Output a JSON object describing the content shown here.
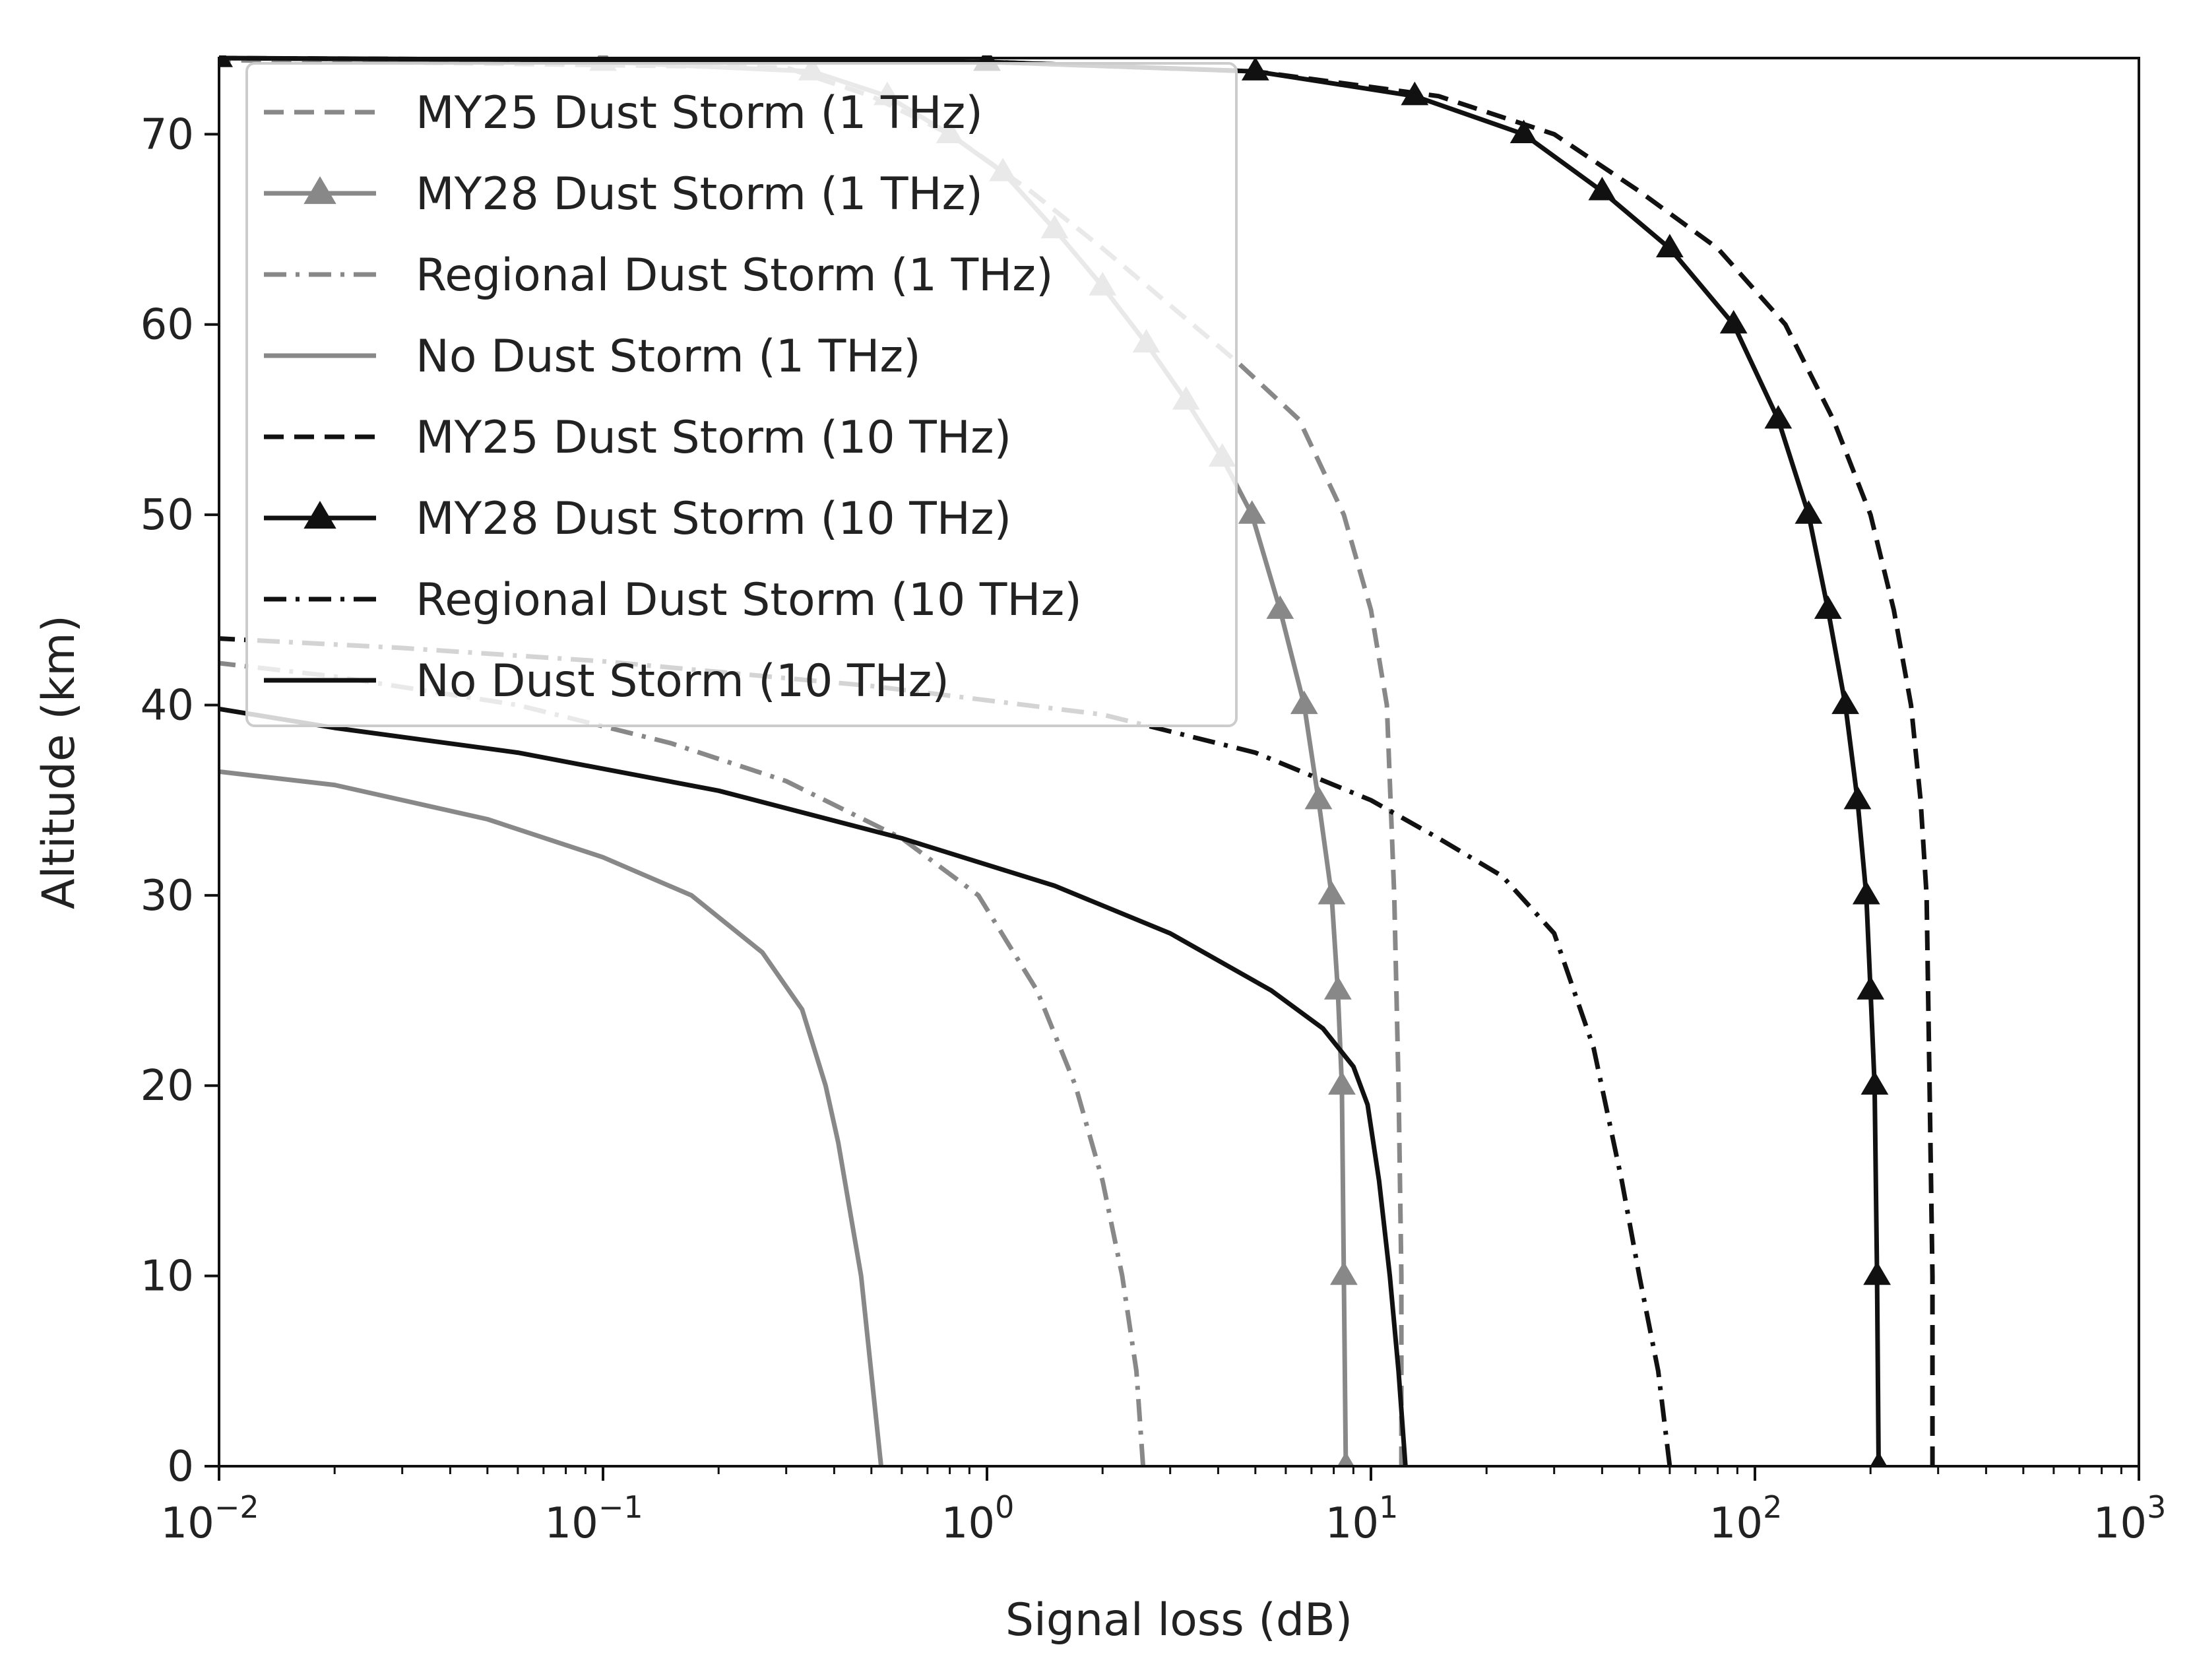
{
  "chart_data": {
    "type": "line",
    "title": "",
    "xlabel": "Signal loss (dB)",
    "ylabel": "Altitude (km)",
    "xscale": "log",
    "xlim": [
      0.01,
      1000
    ],
    "ylim": [
      0,
      74
    ],
    "xticks": [
      {
        "value": 0.01,
        "base": "10",
        "exp": "−2"
      },
      {
        "value": 0.1,
        "base": "10",
        "exp": "−1"
      },
      {
        "value": 1,
        "base": "10",
        "exp": "0"
      },
      {
        "value": 10,
        "base": "10",
        "exp": "1"
      },
      {
        "value": 100,
        "base": "10",
        "exp": "2"
      },
      {
        "value": 1000,
        "base": "10",
        "exp": "3"
      }
    ],
    "yticks": [
      {
        "value": 0,
        "label": "0"
      },
      {
        "value": 10,
        "label": "10"
      },
      {
        "value": 20,
        "label": "20"
      },
      {
        "value": 30,
        "label": "30"
      },
      {
        "value": 40,
        "label": "40"
      },
      {
        "value": 50,
        "label": "50"
      },
      {
        "value": 60,
        "label": "60"
      },
      {
        "value": 70,
        "label": "70"
      }
    ],
    "grid": false,
    "legend_position": "top-left",
    "series": [
      {
        "name": "MY25 Dust Storm (1 THz)",
        "color": "#888888",
        "dash": "dashed",
        "marker": "none",
        "points": [
          [
            12,
            0
          ],
          [
            12,
            10
          ],
          [
            11.8,
            20
          ],
          [
            11.5,
            30
          ],
          [
            11,
            40
          ],
          [
            10,
            45
          ],
          [
            8.5,
            50
          ],
          [
            6.5,
            55
          ],
          [
            4.5,
            58
          ],
          [
            3,
            61
          ],
          [
            2,
            64
          ],
          [
            1.3,
            67
          ],
          [
            0.8,
            70
          ],
          [
            0.5,
            72
          ],
          [
            0.3,
            73.5
          ],
          [
            0.01,
            73.9
          ]
        ]
      },
      {
        "name": "MY28 Dust Storm (1 THz)",
        "color": "#888888",
        "dash": "solid",
        "marker": "triangle",
        "points": [
          [
            8.6,
            0
          ],
          [
            8.5,
            10
          ],
          [
            8.4,
            20
          ],
          [
            8.2,
            25
          ],
          [
            7.9,
            30
          ],
          [
            7.3,
            35
          ],
          [
            6.7,
            40
          ],
          [
            5.8,
            45
          ],
          [
            4.9,
            50
          ],
          [
            4.1,
            53
          ],
          [
            3.3,
            56
          ],
          [
            2.6,
            59
          ],
          [
            2,
            62
          ],
          [
            1.5,
            65
          ],
          [
            1.1,
            68
          ],
          [
            0.8,
            70
          ],
          [
            0.55,
            72
          ],
          [
            0.35,
            73.3
          ],
          [
            0.1,
            73.8
          ],
          [
            0.01,
            74
          ]
        ]
      },
      {
        "name": "Regional Dust Storm (1 THz)",
        "color": "#888888",
        "dash": "dashdot",
        "marker": "none",
        "points": [
          [
            2.55,
            0
          ],
          [
            2.45,
            5
          ],
          [
            2.25,
            10
          ],
          [
            2,
            15
          ],
          [
            1.7,
            20
          ],
          [
            1.35,
            25
          ],
          [
            0.95,
            30
          ],
          [
            0.6,
            33
          ],
          [
            0.3,
            36
          ],
          [
            0.15,
            38
          ],
          [
            0.06,
            40
          ],
          [
            0.02,
            41.5
          ],
          [
            0.01,
            42.2
          ]
        ]
      },
      {
        "name": "No Dust Storm (1 THz)",
        "color": "#888888",
        "dash": "solid",
        "marker": "none",
        "points": [
          [
            0.53,
            0
          ],
          [
            0.47,
            10
          ],
          [
            0.41,
            17
          ],
          [
            0.38,
            20
          ],
          [
            0.33,
            24
          ],
          [
            0.26,
            27
          ],
          [
            0.17,
            30
          ],
          [
            0.1,
            32
          ],
          [
            0.05,
            34
          ],
          [
            0.02,
            35.8
          ],
          [
            0.01,
            36.5
          ]
        ]
      },
      {
        "name": "MY25 Dust Storm (10 THz)",
        "color": "#111111",
        "dash": "dashed",
        "marker": "none",
        "points": [
          [
            290,
            0
          ],
          [
            290,
            10
          ],
          [
            285,
            20
          ],
          [
            280,
            30
          ],
          [
            270,
            35
          ],
          [
            255,
            40
          ],
          [
            230,
            45
          ],
          [
            200,
            50
          ],
          [
            160,
            55
          ],
          [
            120,
            60
          ],
          [
            80,
            64
          ],
          [
            50,
            67
          ],
          [
            30,
            70
          ],
          [
            15,
            72
          ],
          [
            5,
            73.3
          ],
          [
            1,
            73.8
          ],
          [
            0.01,
            74
          ]
        ]
      },
      {
        "name": "MY28 Dust Storm (10 THz)",
        "color": "#111111",
        "dash": "solid",
        "marker": "triangle",
        "points": [
          [
            210,
            0
          ],
          [
            208,
            10
          ],
          [
            205,
            20
          ],
          [
            200,
            25
          ],
          [
            195,
            30
          ],
          [
            185,
            35
          ],
          [
            172,
            40
          ],
          [
            155,
            45
          ],
          [
            138,
            50
          ],
          [
            115,
            55
          ],
          [
            88,
            60
          ],
          [
            60,
            64
          ],
          [
            40,
            67
          ],
          [
            25,
            70
          ],
          [
            13,
            72
          ],
          [
            5,
            73.3
          ],
          [
            1,
            73.8
          ],
          [
            0.01,
            74
          ]
        ]
      },
      {
        "name": "Regional Dust Storm (10 THz)",
        "color": "#111111",
        "dash": "dashdot",
        "marker": "none",
        "points": [
          [
            60,
            0
          ],
          [
            56,
            5
          ],
          [
            50,
            10
          ],
          [
            45,
            15
          ],
          [
            38,
            22
          ],
          [
            30,
            28
          ],
          [
            22,
            31
          ],
          [
            15,
            33
          ],
          [
            10,
            35
          ],
          [
            5,
            37.5
          ],
          [
            2,
            39.5
          ],
          [
            0.5,
            41
          ],
          [
            0.1,
            42.3
          ],
          [
            0.03,
            43
          ],
          [
            0.01,
            43.5
          ]
        ]
      },
      {
        "name": "No Dust Storm (10 THz)",
        "color": "#111111",
        "dash": "solid",
        "marker": "none",
        "points": [
          [
            12.3,
            0
          ],
          [
            11.8,
            5
          ],
          [
            11.2,
            10
          ],
          [
            10.5,
            15
          ],
          [
            9.8,
            19
          ],
          [
            9,
            21
          ],
          [
            7.5,
            23
          ],
          [
            5.5,
            25
          ],
          [
            3,
            28
          ],
          [
            1.5,
            30.5
          ],
          [
            0.6,
            33
          ],
          [
            0.2,
            35.5
          ],
          [
            0.06,
            37.5
          ],
          [
            0.02,
            38.8
          ],
          [
            0.01,
            39.8
          ]
        ]
      }
    ]
  }
}
